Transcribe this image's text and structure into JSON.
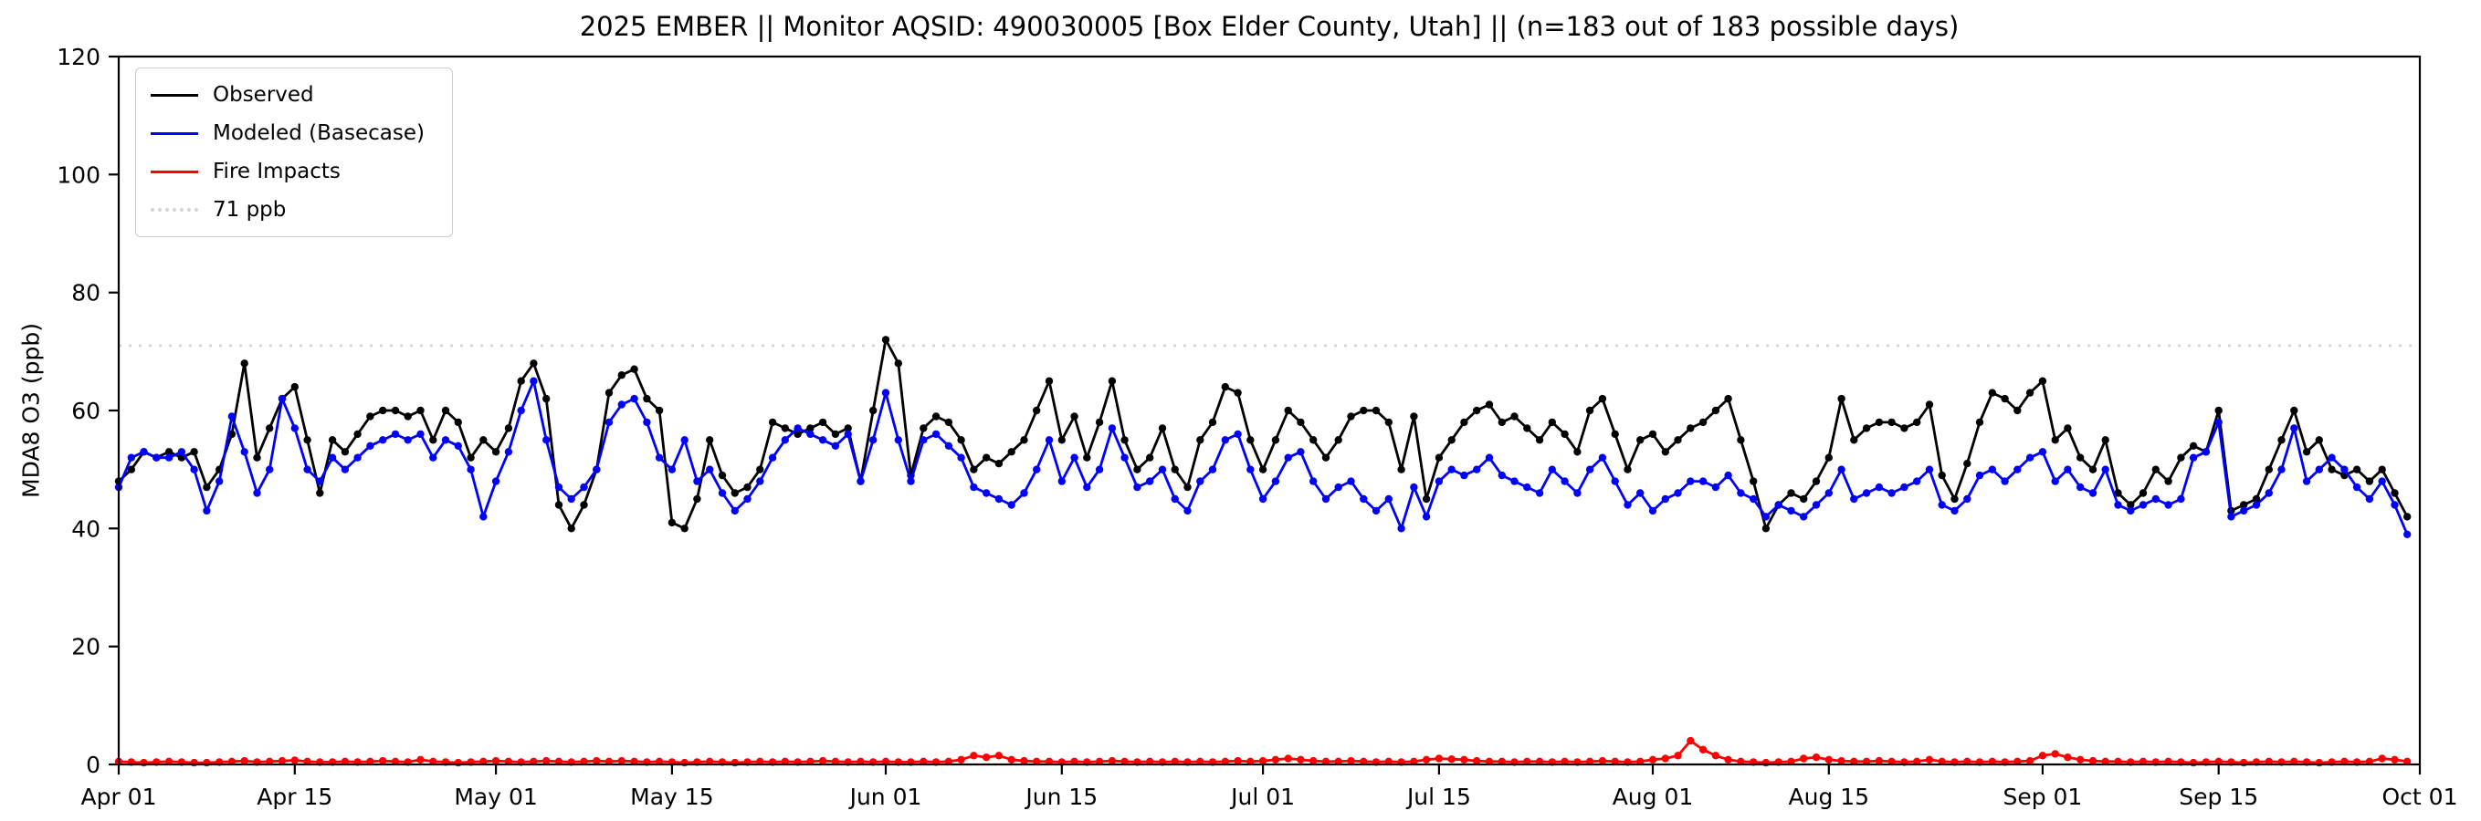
{
  "chart_data": {
    "type": "line",
    "title": "2025 EMBER || Monitor AQSID: 490030005 [Box Elder County, Utah] || (n=183 out of 183 possible days)",
    "xlabel": "",
    "ylabel": "MDA8 O3 (ppb)",
    "ylim": [
      0,
      120
    ],
    "yticks": [
      0,
      20,
      40,
      60,
      80,
      100,
      120
    ],
    "x_range_days": [
      0,
      183
    ],
    "xtick_days": [
      0,
      14,
      30,
      44,
      61,
      75,
      91,
      105,
      122,
      136,
      153,
      167,
      183
    ],
    "xtick_labels": [
      "Apr 01",
      "Apr 15",
      "May 01",
      "May 15",
      "Jun 01",
      "Jun 15",
      "Jul 01",
      "Jul 15",
      "Aug 01",
      "Aug 15",
      "Sep 01",
      "Sep 15",
      "Oct 01"
    ],
    "grid": false,
    "legend_position": "upper-left",
    "threshold": {
      "value": 71,
      "label": "71 ppb",
      "color": "#d3d3d3",
      "style": "dotted"
    },
    "series": [
      {
        "name": "Observed",
        "color": "#000000",
        "marker": "circle",
        "values": [
          48,
          50,
          53,
          52,
          53,
          52,
          53,
          47,
          50,
          56,
          68,
          52,
          57,
          62,
          64,
          55,
          46,
          55,
          53,
          56,
          59,
          60,
          60,
          59,
          60,
          55,
          60,
          58,
          52,
          55,
          53,
          57,
          65,
          68,
          62,
          44,
          40,
          44,
          50,
          63,
          66,
          67,
          62,
          60,
          41,
          40,
          45,
          55,
          49,
          46,
          47,
          50,
          58,
          57,
          56,
          57,
          58,
          56,
          57,
          48,
          60,
          72,
          68,
          49,
          57,
          59,
          58,
          55,
          50,
          52,
          51,
          53,
          55,
          60,
          65,
          55,
          59,
          52,
          58,
          65,
          55,
          50,
          52,
          57,
          50,
          47,
          55,
          58,
          64,
          63,
          55,
          50,
          55,
          60,
          58,
          55,
          52,
          55,
          59,
          60,
          60,
          58,
          50,
          59,
          45,
          52,
          55,
          58,
          60,
          61,
          58,
          59,
          57,
          55,
          58,
          56,
          53,
          60,
          62,
          56,
          50,
          55,
          56,
          53,
          55,
          57,
          58,
          60,
          62,
          55,
          48,
          40,
          44,
          46,
          45,
          48,
          52,
          62,
          55,
          57,
          58,
          58,
          57,
          58,
          61,
          49,
          45,
          51,
          58,
          63,
          62,
          60,
          63,
          65,
          55,
          57,
          52,
          50,
          55,
          46,
          44,
          46,
          50,
          48,
          52,
          54,
          53,
          60,
          43,
          44,
          45,
          50,
          55,
          60,
          53,
          55,
          50,
          49,
          50,
          48,
          50,
          46,
          42
        ]
      },
      {
        "name": "Modeled (Basecase)",
        "color": "#0000ff",
        "marker": "circle",
        "values": [
          47,
          52,
          53,
          52,
          52,
          53,
          50,
          43,
          48,
          59,
          53,
          46,
          50,
          62,
          57,
          50,
          48,
          52,
          50,
          52,
          54,
          55,
          56,
          55,
          56,
          52,
          55,
          54,
          50,
          42,
          48,
          53,
          60,
          65,
          55,
          47,
          45,
          47,
          50,
          58,
          61,
          62,
          58,
          52,
          50,
          55,
          48,
          50,
          46,
          43,
          45,
          48,
          52,
          55,
          57,
          56,
          55,
          54,
          56,
          48,
          55,
          63,
          55,
          48,
          55,
          56,
          54,
          52,
          47,
          46,
          45,
          44,
          46,
          50,
          55,
          48,
          52,
          47,
          50,
          57,
          52,
          47,
          48,
          50,
          45,
          43,
          48,
          50,
          55,
          56,
          50,
          45,
          48,
          52,
          53,
          48,
          45,
          47,
          48,
          45,
          43,
          45,
          40,
          47,
          42,
          48,
          50,
          49,
          50,
          52,
          49,
          48,
          47,
          46,
          50,
          48,
          46,
          50,
          52,
          48,
          44,
          46,
          43,
          45,
          46,
          48,
          48,
          47,
          49,
          46,
          45,
          42,
          44,
          43,
          42,
          44,
          46,
          50,
          45,
          46,
          47,
          46,
          47,
          48,
          50,
          44,
          43,
          45,
          49,
          50,
          48,
          50,
          52,
          53,
          48,
          50,
          47,
          46,
          50,
          44,
          43,
          44,
          45,
          44,
          45,
          52,
          53,
          58,
          42,
          43,
          44,
          46,
          50,
          57,
          48,
          50,
          52,
          50,
          47,
          45,
          48,
          44,
          39
        ]
      },
      {
        "name": "Fire Impacts",
        "color": "#ff0000",
        "marker": "circle",
        "values": [
          0.5,
          0.4,
          0.3,
          0.4,
          0.5,
          0.4,
          0.3,
          0.3,
          0.4,
          0.5,
          0.6,
          0.4,
          0.5,
          0.6,
          0.7,
          0.5,
          0.4,
          0.4,
          0.5,
          0.4,
          0.5,
          0.6,
          0.5,
          0.4,
          0.8,
          0.5,
          0.4,
          0.3,
          0.4,
          0.5,
          0.6,
          0.5,
          0.4,
          0.5,
          0.6,
          0.5,
          0.4,
          0.5,
          0.6,
          0.5,
          0.6,
          0.5,
          0.4,
          0.5,
          0.4,
          0.3,
          0.4,
          0.5,
          0.4,
          0.3,
          0.4,
          0.5,
          0.4,
          0.5,
          0.4,
          0.5,
          0.6,
          0.5,
          0.4,
          0.5,
          0.4,
          0.5,
          0.4,
          0.4,
          0.5,
          0.4,
          0.5,
          0.8,
          1.5,
          1.2,
          1.5,
          0.8,
          0.6,
          0.5,
          0.5,
          0.4,
          0.5,
          0.4,
          0.5,
          0.6,
          0.5,
          0.4,
          0.5,
          0.4,
          0.5,
          0.4,
          0.5,
          0.4,
          0.5,
          0.6,
          0.5,
          0.6,
          0.8,
          1.0,
          0.8,
          0.6,
          0.5,
          0.5,
          0.6,
          0.5,
          0.4,
          0.5,
          0.4,
          0.5,
          0.8,
          1.0,
          0.9,
          0.8,
          0.6,
          0.5,
          0.5,
          0.4,
          0.5,
          0.5,
          0.4,
          0.5,
          0.4,
          0.5,
          0.6,
          0.5,
          0.4,
          0.5,
          0.8,
          1.0,
          1.5,
          4.0,
          2.5,
          1.5,
          0.8,
          0.5,
          0.4,
          0.3,
          0.4,
          0.5,
          1.0,
          1.2,
          0.8,
          0.6,
          0.5,
          0.5,
          0.6,
          0.5,
          0.4,
          0.5,
          0.8,
          0.5,
          0.4,
          0.5,
          0.4,
          0.5,
          0.4,
          0.5,
          0.6,
          1.5,
          1.8,
          1.2,
          0.8,
          0.6,
          0.5,
          0.5,
          0.4,
          0.5,
          0.4,
          0.5,
          0.4,
          0.3,
          0.4,
          0.5,
          0.4,
          0.3,
          0.4,
          0.5,
          0.4,
          0.5,
          0.4,
          0.3,
          0.4,
          0.5,
          0.4,
          0.5,
          1.0,
          0.8,
          0.5
        ]
      }
    ]
  }
}
